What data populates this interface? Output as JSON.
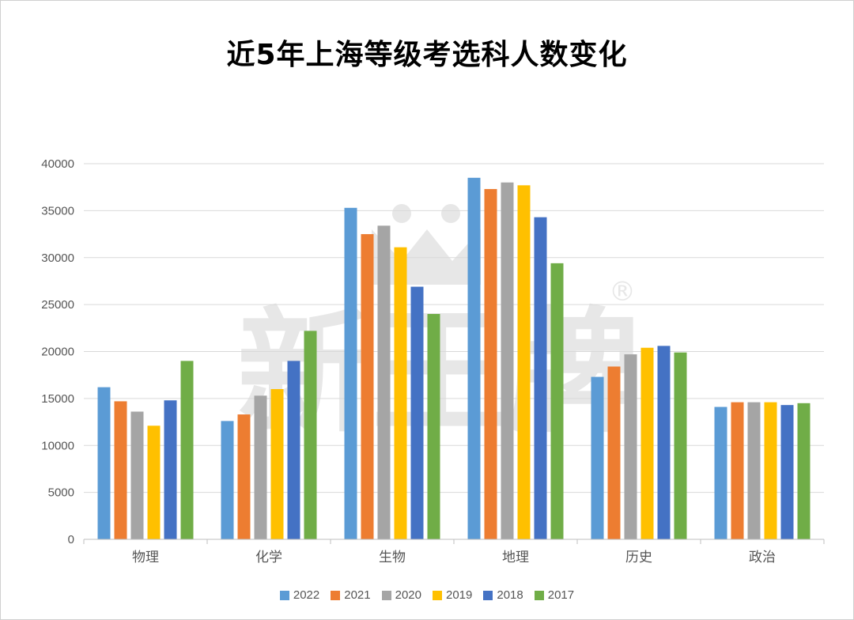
{
  "chart_data": {
    "type": "bar",
    "title": "近5年上海等级考选科人数变化",
    "xlabel": "",
    "ylabel": "",
    "ylim": [
      0,
      40000
    ],
    "yticks": [
      0,
      5000,
      10000,
      15000,
      20000,
      25000,
      30000,
      35000,
      40000
    ],
    "grid": true,
    "legend_position": "bottom",
    "categories": [
      "物理",
      "化学",
      "生物",
      "地理",
      "历史",
      "政治"
    ],
    "series": [
      {
        "name": "2022",
        "color": "#5b9bd5",
        "values": [
          16200,
          12600,
          35300,
          38500,
          17300,
          14100
        ]
      },
      {
        "name": "2021",
        "color": "#ed7d31",
        "values": [
          14700,
          13300,
          32500,
          37300,
          18400,
          14600
        ]
      },
      {
        "name": "2020",
        "color": "#a5a5a5",
        "values": [
          13600,
          15300,
          33400,
          38000,
          19700,
          14600
        ]
      },
      {
        "name": "2019",
        "color": "#ffc000",
        "values": [
          12100,
          16000,
          31100,
          37700,
          20400,
          14600
        ]
      },
      {
        "name": "2018",
        "color": "#4472c4",
        "values": [
          14800,
          19000,
          26900,
          34300,
          20600,
          14300
        ]
      },
      {
        "name": "2017",
        "color": "#70ad47",
        "values": [
          19000,
          22200,
          24000,
          29400,
          19900,
          14500
        ]
      }
    ]
  },
  "watermark": {
    "text": "新王牌",
    "mark": "®"
  }
}
